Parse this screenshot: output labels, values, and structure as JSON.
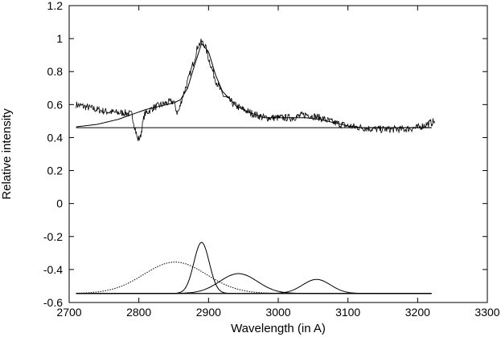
{
  "chart_data": {
    "type": "line",
    "title": "",
    "xlabel": "Wavelength (in A)",
    "ylabel": "Relative intensity",
    "xlim": [
      2700,
      3300
    ],
    "ylim": [
      -0.6,
      1.2
    ],
    "grid": false,
    "legend": "none",
    "x_ticks": [
      2700,
      2800,
      2900,
      3000,
      3100,
      3200,
      3300
    ],
    "y_ticks": [
      -0.6,
      -0.4,
      -0.2,
      0,
      0.2,
      0.4,
      0.6,
      0.8,
      1,
      1.2
    ],
    "x_tick_labels": [
      "2700",
      "2800",
      "2900",
      "3000",
      "3100",
      "3200",
      "3300"
    ],
    "y_tick_labels": [
      "-0.6",
      "-0.4",
      "-0.2",
      "0",
      "0.2",
      "0.4",
      "0.6",
      "0.8",
      "1",
      "1.2"
    ],
    "colors": {
      "line": "#000000",
      "background": "#ffffff"
    },
    "series": [
      {
        "style": "noisy-solid",
        "x": [
          2710,
          2730,
          2750,
          2770,
          2780,
          2790,
          2795,
          2798,
          2802,
          2808,
          2820,
          2840,
          2850,
          2855,
          2858,
          2862,
          2870,
          2880,
          2885,
          2890,
          2895,
          2900,
          2910,
          2920,
          2940,
          2960,
          2980,
          3000,
          3020,
          3040,
          3060,
          3080,
          3100,
          3120,
          3140,
          3160,
          3180,
          3200,
          3225
        ],
        "y": [
          0.6,
          0.58,
          0.56,
          0.55,
          0.55,
          0.54,
          0.45,
          0.39,
          0.4,
          0.54,
          0.58,
          0.61,
          0.62,
          0.55,
          0.57,
          0.64,
          0.74,
          0.88,
          0.96,
          0.98,
          0.96,
          0.88,
          0.75,
          0.66,
          0.59,
          0.55,
          0.52,
          0.52,
          0.52,
          0.54,
          0.52,
          0.49,
          0.47,
          0.46,
          0.45,
          0.45,
          0.45,
          0.46,
          0.5
        ]
      },
      {
        "style": "solid-fit",
        "x": [
          2710,
          2740,
          2770,
          2790,
          2810,
          2830,
          2850,
          2860,
          2870,
          2880,
          2890,
          2900,
          2910,
          2920,
          2940,
          2960,
          2980,
          3000,
          3020,
          3040,
          3060,
          3080,
          3100,
          3120,
          3140,
          3160,
          3180,
          3200,
          3220
        ],
        "y": [
          0.465,
          0.48,
          0.51,
          0.54,
          0.57,
          0.59,
          0.61,
          0.63,
          0.7,
          0.84,
          0.97,
          0.92,
          0.78,
          0.68,
          0.59,
          0.55,
          0.52,
          0.52,
          0.52,
          0.52,
          0.51,
          0.49,
          0.47,
          0.46,
          0.46,
          0.46,
          0.46,
          0.46,
          0.46
        ]
      },
      {
        "style": "solid-baseline",
        "x": [
          2710,
          3220
        ],
        "y": [
          0.46,
          0.46
        ]
      },
      {
        "style": "solid-bottom-baseline",
        "x": [
          2710,
          3220
        ],
        "y": [
          -0.545,
          -0.545
        ]
      },
      {
        "style": "dotted-gaussian",
        "center": 2852,
        "sigma": 45,
        "base": -0.545,
        "amplitude": 0.19,
        "x_range": [
          2710,
          3220
        ]
      },
      {
        "style": "solid-gaussian",
        "center": 2890,
        "sigma": 11,
        "base": -0.545,
        "amplitude": 0.31,
        "x_range": [
          2710,
          3220
        ]
      },
      {
        "style": "solid-gaussian",
        "center": 2943,
        "sigma": 27,
        "base": -0.545,
        "amplitude": 0.12,
        "x_range": [
          2710,
          3220
        ]
      },
      {
        "style": "solid-gaussian",
        "center": 3055,
        "sigma": 20,
        "base": -0.545,
        "amplitude": 0.085,
        "x_range": [
          2710,
          3220
        ]
      }
    ]
  }
}
